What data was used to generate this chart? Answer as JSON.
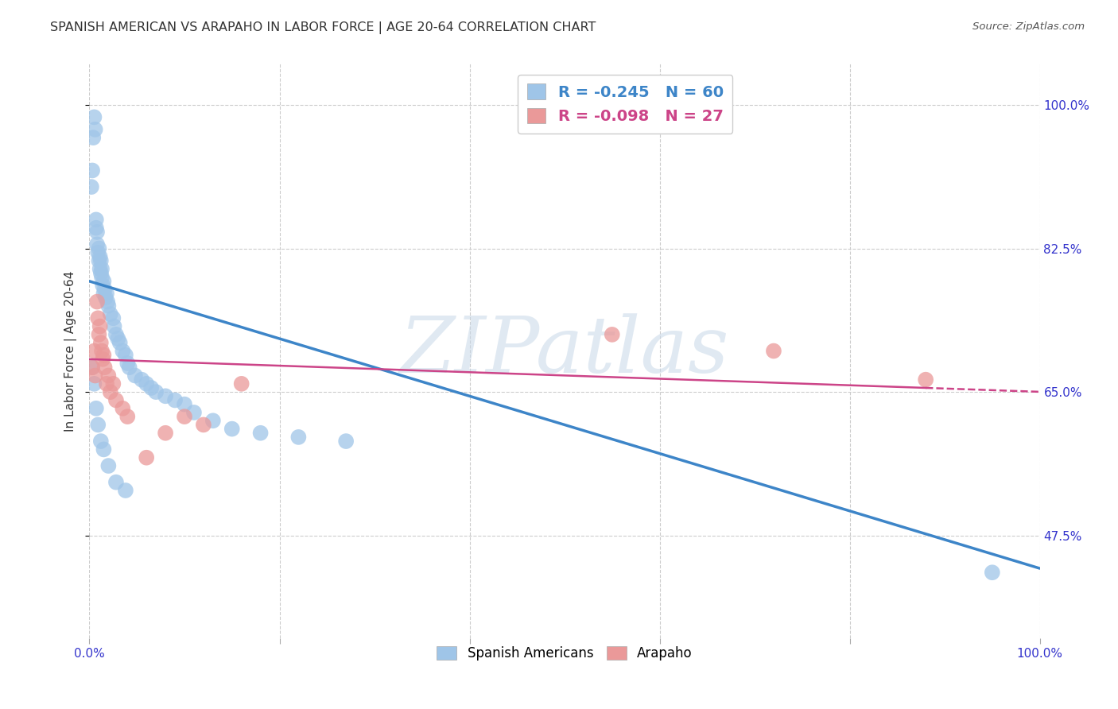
{
  "title": "SPANISH AMERICAN VS ARAPAHO IN LABOR FORCE | AGE 20-64 CORRELATION CHART",
  "source": "Source: ZipAtlas.com",
  "ylabel": "In Labor Force | Age 20-64",
  "xlim": [
    0.0,
    1.0
  ],
  "ylim": [
    0.35,
    1.05
  ],
  "xtick_positions": [
    0.0,
    0.2,
    0.4,
    0.6,
    0.8,
    1.0
  ],
  "xticklabels_show": [
    "0.0%",
    "100.0%"
  ],
  "ytick_positions": [
    1.0,
    0.825,
    0.65,
    0.475
  ],
  "ytick_labels": [
    "100.0%",
    "82.5%",
    "65.0%",
    "47.5%"
  ],
  "blue_R": "-0.245",
  "blue_N": "60",
  "pink_R": "-0.098",
  "pink_N": "27",
  "blue_color": "#9fc5e8",
  "pink_color": "#ea9999",
  "blue_line_color": "#3d85c8",
  "pink_line_color": "#cc4488",
  "watermark": "ZIPatlas",
  "blue_line_x0": 0.0,
  "blue_line_y0": 0.785,
  "blue_line_x1": 1.0,
  "blue_line_y1": 0.435,
  "pink_line_x0": 0.0,
  "pink_line_y0": 0.69,
  "pink_line_x1": 0.88,
  "pink_line_y1": 0.655,
  "grid_color": "#cccccc",
  "background_color": "#ffffff",
  "blue_x": [
    0.002,
    0.003,
    0.004,
    0.005,
    0.006,
    0.007,
    0.007,
    0.008,
    0.008,
    0.009,
    0.01,
    0.01,
    0.011,
    0.011,
    0.012,
    0.012,
    0.013,
    0.013,
    0.014,
    0.015,
    0.015,
    0.016,
    0.017,
    0.018,
    0.019,
    0.02,
    0.022,
    0.025,
    0.026,
    0.028,
    0.03,
    0.032,
    0.035,
    0.038,
    0.04,
    0.042,
    0.048,
    0.055,
    0.06,
    0.065,
    0.07,
    0.08,
    0.09,
    0.1,
    0.11,
    0.13,
    0.15,
    0.18,
    0.22,
    0.27,
    0.003,
    0.005,
    0.007,
    0.009,
    0.012,
    0.015,
    0.02,
    0.028,
    0.038,
    0.95
  ],
  "blue_y": [
    0.9,
    0.92,
    0.96,
    0.985,
    0.97,
    0.85,
    0.86,
    0.83,
    0.845,
    0.82,
    0.81,
    0.825,
    0.815,
    0.8,
    0.81,
    0.795,
    0.8,
    0.79,
    0.78,
    0.785,
    0.77,
    0.775,
    0.765,
    0.77,
    0.76,
    0.755,
    0.745,
    0.74,
    0.73,
    0.72,
    0.715,
    0.71,
    0.7,
    0.695,
    0.685,
    0.68,
    0.67,
    0.665,
    0.66,
    0.655,
    0.65,
    0.645,
    0.64,
    0.635,
    0.625,
    0.615,
    0.605,
    0.6,
    0.595,
    0.59,
    0.68,
    0.66,
    0.63,
    0.61,
    0.59,
    0.58,
    0.56,
    0.54,
    0.53,
    0.43
  ],
  "pink_x": [
    0.003,
    0.005,
    0.006,
    0.008,
    0.009,
    0.01,
    0.011,
    0.012,
    0.013,
    0.014,
    0.015,
    0.016,
    0.018,
    0.02,
    0.022,
    0.025,
    0.028,
    0.035,
    0.04,
    0.06,
    0.08,
    0.1,
    0.12,
    0.16,
    0.55,
    0.72,
    0.88
  ],
  "pink_y": [
    0.68,
    0.7,
    0.67,
    0.76,
    0.74,
    0.72,
    0.73,
    0.71,
    0.7,
    0.69,
    0.695,
    0.68,
    0.66,
    0.67,
    0.65,
    0.66,
    0.64,
    0.63,
    0.62,
    0.57,
    0.6,
    0.62,
    0.61,
    0.66,
    0.72,
    0.7,
    0.665
  ]
}
